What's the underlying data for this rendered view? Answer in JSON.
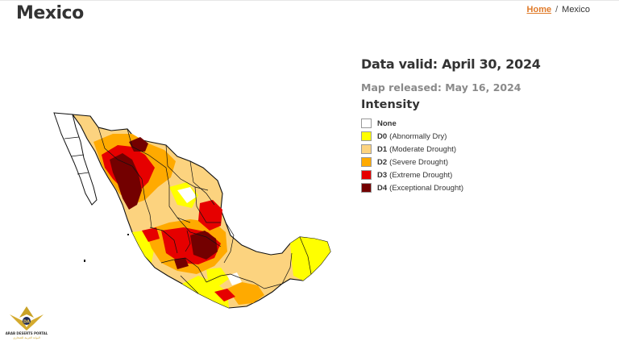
{
  "header": {
    "title": "Mexico",
    "breadcrumb": {
      "home": "Home",
      "separator": "/",
      "current": "Mexico"
    }
  },
  "info": {
    "data_valid": "Data valid: April 30, 2024",
    "released": "Map released: May 16, 2024",
    "intensity_title": "Intensity"
  },
  "legend": [
    {
      "code": "None",
      "label": "",
      "color": "#ffffff"
    },
    {
      "code": "D0",
      "label": "(Abnormally Dry)",
      "color": "#ffff00"
    },
    {
      "code": "D1",
      "label": "(Moderate Drought)",
      "color": "#fcd37f"
    },
    {
      "code": "D2",
      "label": "(Severe Drought)",
      "color": "#ffaa00"
    },
    {
      "code": "D3",
      "label": "(Extreme Drought)",
      "color": "#e60000"
    },
    {
      "code": "D4",
      "label": "(Exceptional Drought)",
      "color": "#730000"
    }
  ],
  "logo": {
    "line1": "ARAB DESERTS PORTAL",
    "line2": "البوابة العربية للصحاري"
  }
}
